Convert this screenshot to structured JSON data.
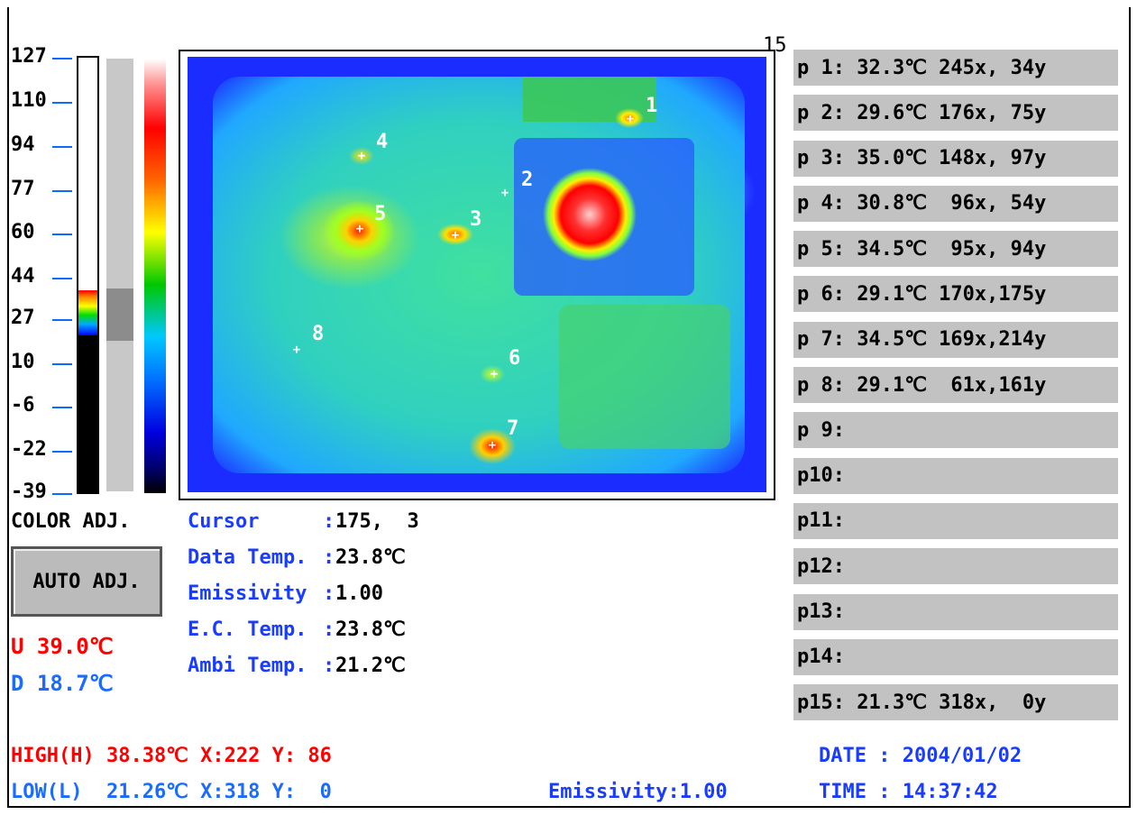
{
  "scale": {
    "ticks": [
      "127",
      "110",
      "94",
      "77",
      "60",
      "44",
      "27",
      "10",
      "-6",
      "-22",
      "-39"
    ]
  },
  "color_adj_label": "COLOR ADJ.",
  "auto_adj_label": "AUTO ADJ.",
  "upper": "U 39.0℃",
  "lower": "D 18.7℃",
  "corner_number": "15",
  "markers": [
    {
      "num": "1"
    },
    {
      "num": "2"
    },
    {
      "num": "3"
    },
    {
      "num": "4"
    },
    {
      "num": "5"
    },
    {
      "num": "6"
    },
    {
      "num": "7"
    },
    {
      "num": "8"
    }
  ],
  "info": [
    {
      "key": "Cursor",
      "sep": ":",
      "value": "175,  3"
    },
    {
      "key": "Data Temp.",
      "sep": ":",
      "value": "23.8℃"
    },
    {
      "key": "Emissivity",
      "sep": ":",
      "value": "1.00"
    },
    {
      "key": "E.C. Temp.",
      "sep": ":",
      "value": "23.8℃"
    },
    {
      "key": "Ambi Temp.",
      "sep": ":",
      "value": "21.2℃"
    }
  ],
  "points": [
    "p 1: 32.3℃ 245x, 34y",
    "p 2: 29.6℃ 176x, 75y",
    "p 3: 35.0℃ 148x, 97y",
    "p 4: 30.8℃  96x, 54y",
    "p 5: 34.5℃  95x, 94y",
    "p 6: 29.1℃ 170x,175y",
    "p 7: 34.5℃ 169x,214y",
    "p 8: 29.1℃  61x,161y",
    "p 9:",
    "p10:",
    "p11:",
    "p12:",
    "p13:",
    "p14:",
    "p15: 21.3℃ 318x,  0y"
  ],
  "bottom": {
    "high": "HIGH(H) 38.38℃ X:222 Y: 86",
    "low": "LOW(L)  21.26℃ X:318 Y:  0",
    "emissivity": "Emissivity:1.00",
    "date": "DATE : 2004/01/02",
    "time": "TIME : 14:37:42"
  },
  "colors": {
    "key_blue": "#1a3cff",
    "high_red": "#ff0000",
    "low_blue": "#1a6bff",
    "row_gray": "#c2c2c2"
  }
}
